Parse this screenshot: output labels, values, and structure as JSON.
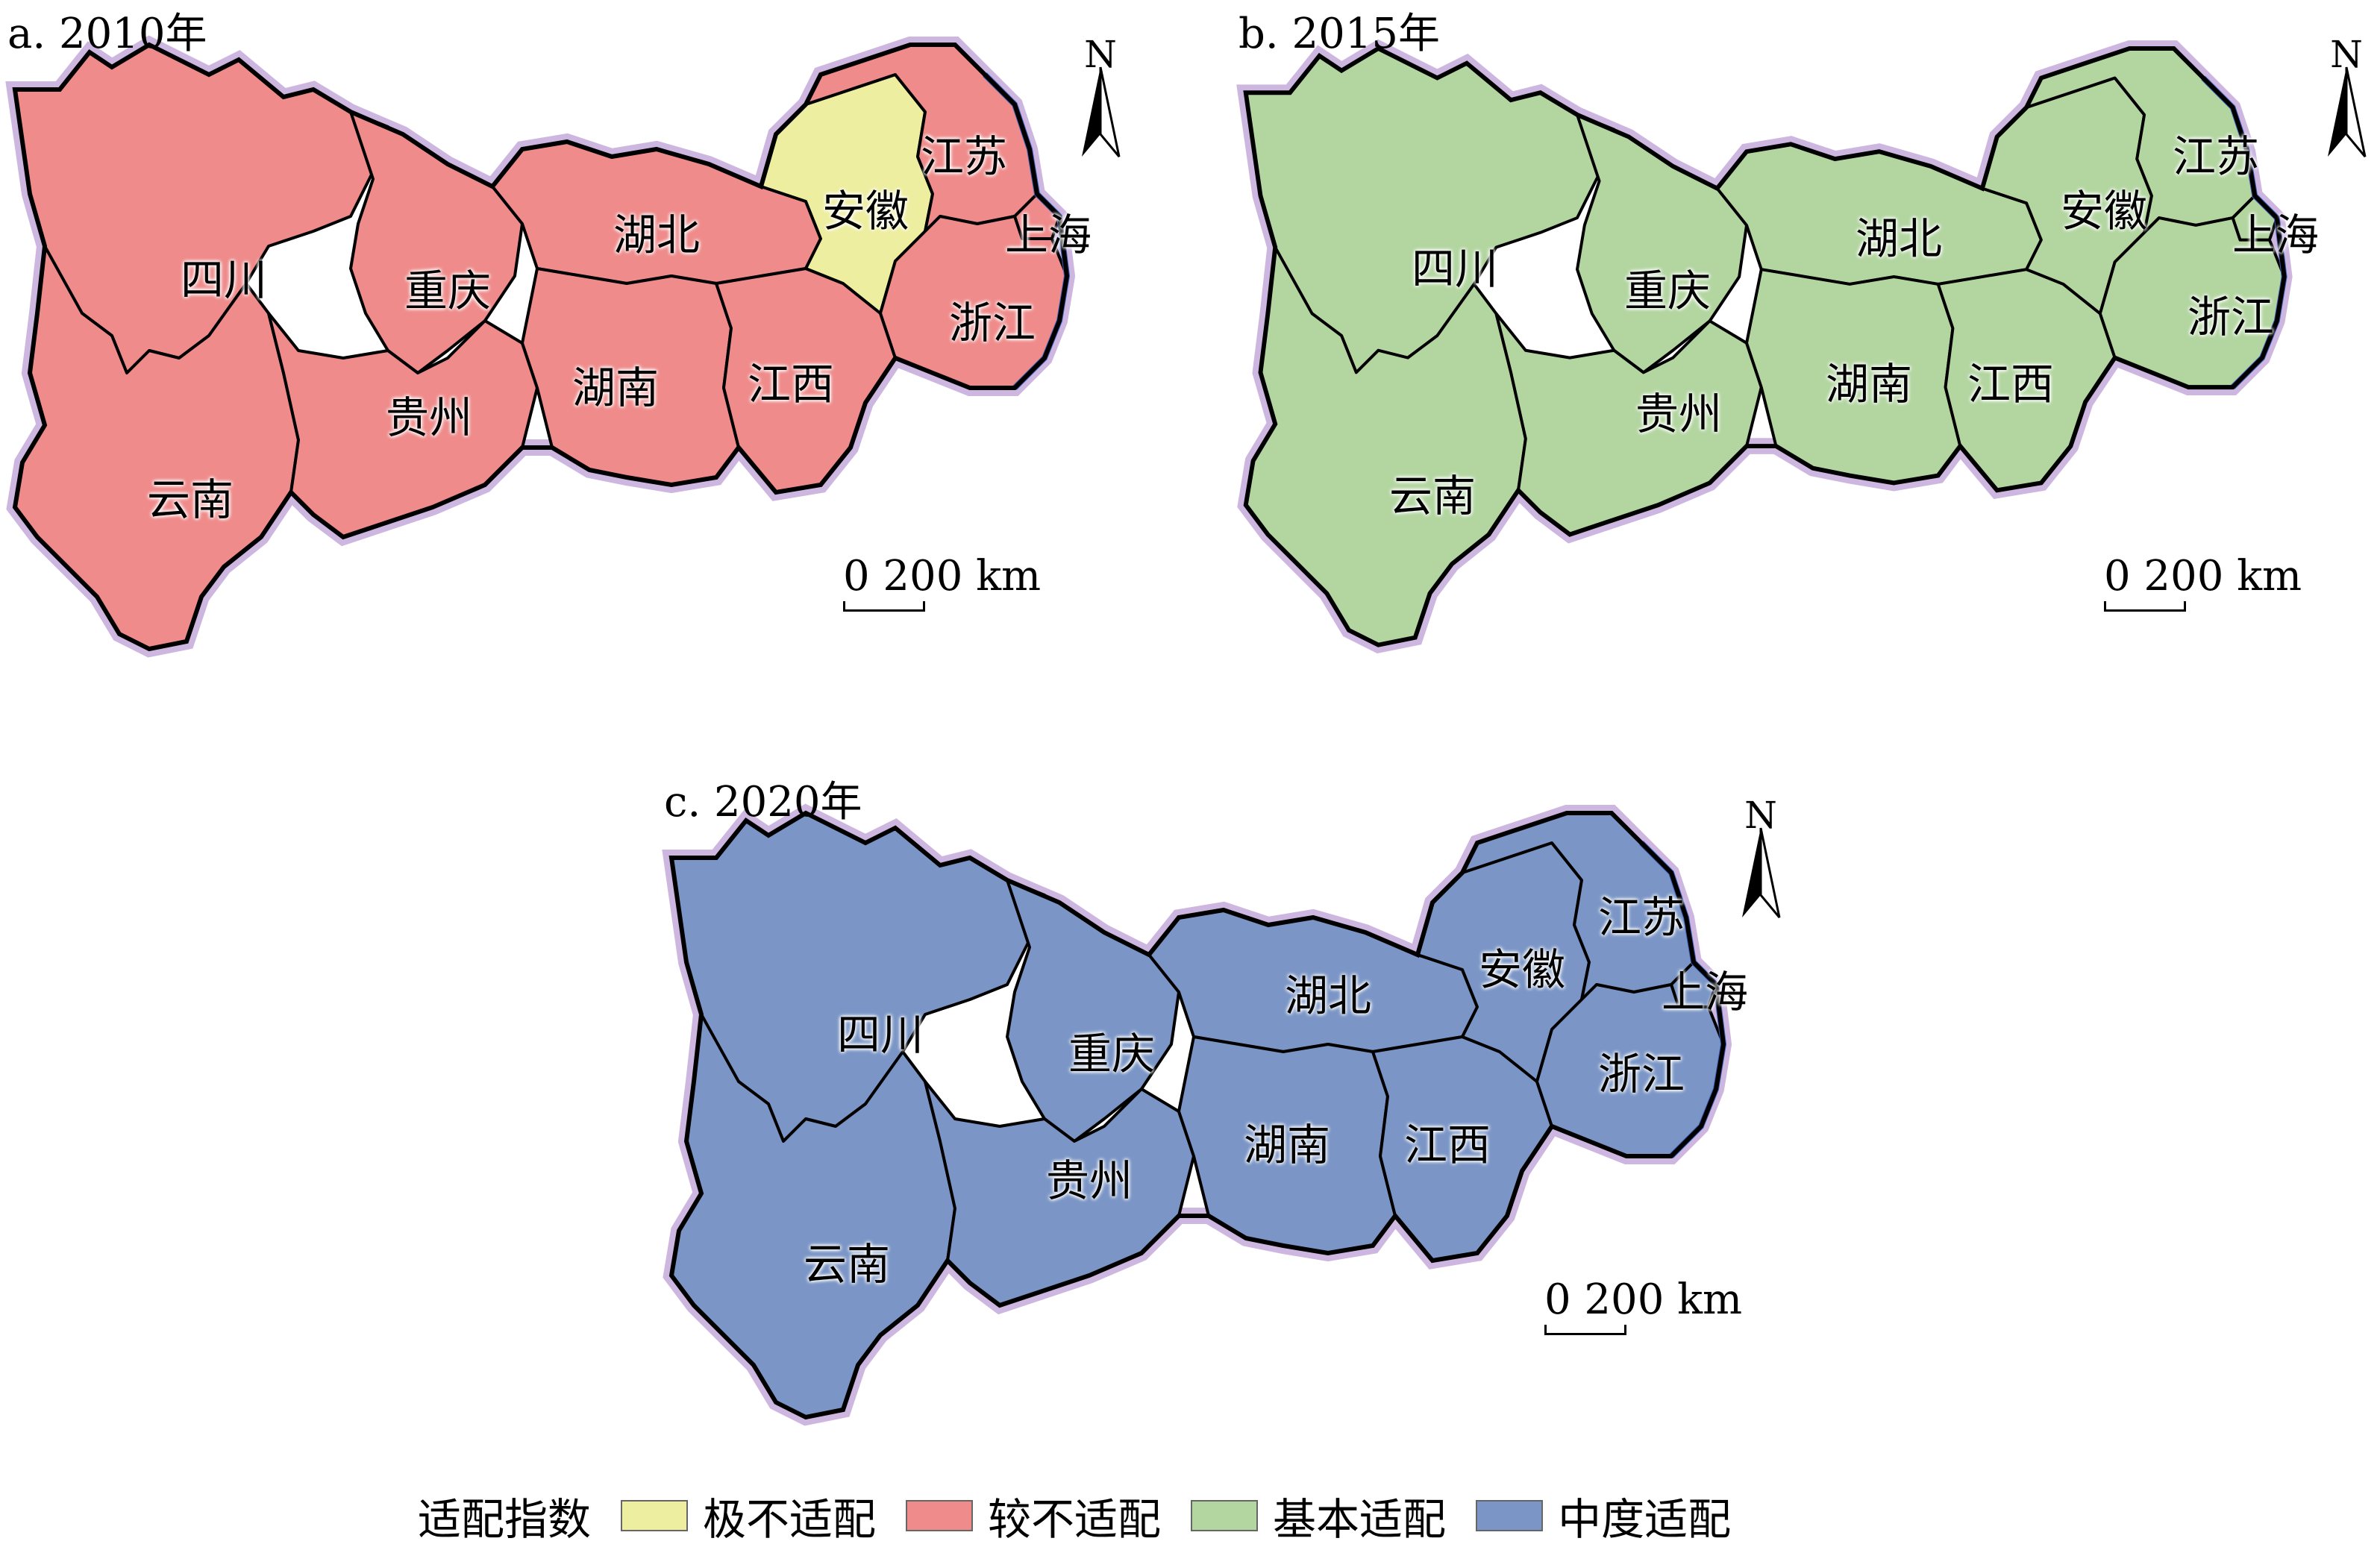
{
  "colors": {
    "very_unsuitable": "#eeeea0",
    "less_unsuitable": "#ef8b8b",
    "basic_suitable": "#b3d6a1",
    "moderate_suitable": "#7b96c6",
    "no_data": "#ffffff",
    "border": "#000000",
    "coast": "#3f5fb8",
    "halo": "#cdb7e0"
  },
  "panels": [
    {
      "title": "a. 2010年",
      "north": "N",
      "scale": "0  200 km",
      "provinces": [
        {
          "name": "四川",
          "class": "less_unsuitable"
        },
        {
          "name": "重庆",
          "class": "less_unsuitable"
        },
        {
          "name": "云南",
          "class": "less_unsuitable"
        },
        {
          "name": "贵州",
          "class": "less_unsuitable"
        },
        {
          "name": "湖北",
          "class": "less_unsuitable"
        },
        {
          "name": "湖南",
          "class": "less_unsuitable"
        },
        {
          "name": "江西",
          "class": "less_unsuitable"
        },
        {
          "name": "安徽",
          "class": "very_unsuitable"
        },
        {
          "name": "江苏",
          "class": "less_unsuitable"
        },
        {
          "name": "上海",
          "class": "less_unsuitable"
        },
        {
          "name": "浙江",
          "class": "less_unsuitable"
        }
      ]
    },
    {
      "title": "b. 2015年",
      "north": "N",
      "scale": "0  200 km",
      "provinces": [
        {
          "name": "四川",
          "class": "basic_suitable"
        },
        {
          "name": "重庆",
          "class": "basic_suitable"
        },
        {
          "name": "云南",
          "class": "basic_suitable"
        },
        {
          "name": "贵州",
          "class": "basic_suitable"
        },
        {
          "name": "湖北",
          "class": "basic_suitable"
        },
        {
          "name": "湖南",
          "class": "basic_suitable"
        },
        {
          "name": "江西",
          "class": "basic_suitable"
        },
        {
          "name": "安徽",
          "class": "basic_suitable"
        },
        {
          "name": "江苏",
          "class": "basic_suitable"
        },
        {
          "name": "上海",
          "class": "basic_suitable"
        },
        {
          "name": "浙江",
          "class": "basic_suitable"
        }
      ]
    },
    {
      "title": "c. 2020年",
      "north": "N",
      "scale": "0  200 km",
      "provinces": [
        {
          "name": "四川",
          "class": "moderate_suitable"
        },
        {
          "name": "重庆",
          "class": "moderate_suitable"
        },
        {
          "name": "云南",
          "class": "moderate_suitable"
        },
        {
          "name": "贵州",
          "class": "moderate_suitable"
        },
        {
          "name": "湖北",
          "class": "moderate_suitable"
        },
        {
          "name": "湖南",
          "class": "moderate_suitable"
        },
        {
          "name": "江西",
          "class": "moderate_suitable"
        },
        {
          "name": "安徽",
          "class": "moderate_suitable"
        },
        {
          "name": "江苏",
          "class": "moderate_suitable"
        },
        {
          "name": "上海",
          "class": "moderate_suitable"
        },
        {
          "name": "浙江",
          "class": "moderate_suitable"
        }
      ]
    }
  ],
  "legend": {
    "title": "适配指数",
    "items": [
      {
        "label": "极不适配",
        "class": "very_unsuitable"
      },
      {
        "label": "较不适配",
        "class": "less_unsuitable"
      },
      {
        "label": "基本适配",
        "class": "basic_suitable"
      },
      {
        "label": "中度适配",
        "class": "moderate_suitable"
      }
    ]
  }
}
